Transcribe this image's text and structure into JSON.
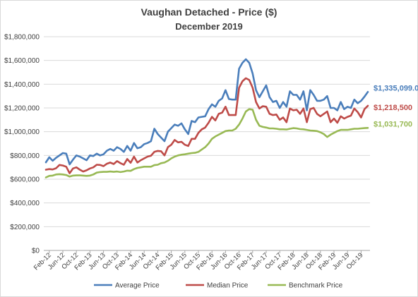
{
  "chart_data": {
    "type": "line",
    "title": "Vaughan Detached - Price ($)",
    "subtitle": "December 2019",
    "ylim": [
      0,
      1800000
    ],
    "y_ticks": [
      "$0",
      "$200,000",
      "$400,000",
      "$600,000",
      "$800,000",
      "$1,000,000",
      "$1,200,000",
      "$1,400,000",
      "$1,600,000",
      "$1,800,000"
    ],
    "x_tick_labels": [
      "Feb-12",
      "Jun-12",
      "Oct-12",
      "Feb-13",
      "Jun-13",
      "Oct-13",
      "Feb-14",
      "Jun-14",
      "Oct-14",
      "Feb-15",
      "Jun-15",
      "Oct-15",
      "Feb-16",
      "Jun-16",
      "Oct-16",
      "Feb-17",
      "Jun-17",
      "Oct-17",
      "Feb-18",
      "Jun-18",
      "Oct-18",
      "Feb-19",
      "Jun-19",
      "Oct-19"
    ],
    "x_start": "Jan-12",
    "x_end": "Dec-19",
    "grid": true,
    "legend_position": "bottom",
    "series": [
      {
        "name": "Average Price",
        "color": "#4a7ebb",
        "end_label": "$1,335,099.00",
        "values": [
          742000,
          785000,
          755000,
          780000,
          800000,
          820000,
          815000,
          725000,
          765000,
          800000,
          790000,
          775000,
          760000,
          800000,
          795000,
          815000,
          800000,
          810000,
          840000,
          855000,
          840000,
          870000,
          855000,
          830000,
          880000,
          840000,
          905000,
          860000,
          870000,
          895000,
          905000,
          920000,
          1025000,
          980000,
          950000,
          920000,
          1000000,
          1030000,
          1060000,
          1050000,
          1070000,
          1020000,
          980000,
          1090000,
          1080000,
          1120000,
          1125000,
          1130000,
          1190000,
          1230000,
          1210000,
          1260000,
          1280000,
          1350000,
          1275000,
          1270000,
          1270000,
          1530000,
          1580000,
          1610000,
          1580000,
          1490000,
          1350000,
          1290000,
          1340000,
          1390000,
          1290000,
          1250000,
          1260000,
          1200000,
          1250000,
          1210000,
          1340000,
          1310000,
          1310000,
          1270000,
          1340000,
          1180000,
          1350000,
          1310000,
          1260000,
          1260000,
          1270000,
          1300000,
          1200000,
          1200000,
          1180000,
          1250000,
          1190000,
          1210000,
          1200000,
          1270000,
          1240000,
          1260000,
          1295000,
          1335099
        ]
      },
      {
        "name": "Median Price",
        "color": "#be4b48",
        "end_label": "$1,218,500",
        "values": [
          680000,
          685000,
          682000,
          692000,
          720000,
          715000,
          705000,
          650000,
          690000,
          700000,
          680000,
          665000,
          675000,
          690000,
          700000,
          722000,
          720000,
          710000,
          730000,
          740000,
          728000,
          752000,
          735000,
          722000,
          770000,
          738000,
          790000,
          740000,
          760000,
          775000,
          790000,
          798000,
          830000,
          838000,
          835000,
          800000,
          870000,
          890000,
          930000,
          910000,
          915000,
          890000,
          880000,
          940000,
          940000,
          990000,
          1020000,
          1035000,
          1075000,
          1125000,
          1095000,
          1150000,
          1160000,
          1210000,
          1140000,
          1140000,
          1140000,
          1370000,
          1425000,
          1450000,
          1435000,
          1370000,
          1250000,
          1195000,
          1215000,
          1210000,
          1150000,
          1140000,
          1145000,
          1100000,
          1120000,
          1080000,
          1195000,
          1180000,
          1185000,
          1150000,
          1195000,
          1080000,
          1190000,
          1200000,
          1150000,
          1130000,
          1150000,
          1170000,
          1080000,
          1110000,
          1075000,
          1130000,
          1110000,
          1125000,
          1135000,
          1195000,
          1165000,
          1120000,
          1190000,
          1218500
        ]
      },
      {
        "name": "Benchmark Price",
        "color": "#98b954",
        "end_label": "$1,031,700",
        "values": [
          615000,
          628000,
          630000,
          640000,
          642000,
          640000,
          635000,
          622000,
          630000,
          632000,
          632000,
          630000,
          628000,
          630000,
          640000,
          655000,
          660000,
          662000,
          662000,
          665000,
          662000,
          665000,
          660000,
          665000,
          672000,
          670000,
          685000,
          695000,
          700000,
          705000,
          705000,
          705000,
          718000,
          722000,
          735000,
          740000,
          755000,
          775000,
          790000,
          800000,
          806000,
          810000,
          815000,
          820000,
          822000,
          830000,
          850000,
          870000,
          900000,
          940000,
          960000,
          975000,
          990000,
          1005000,
          1010000,
          1010000,
          1025000,
          1060000,
          1110000,
          1170000,
          1190000,
          1185000,
          1100000,
          1050000,
          1040000,
          1035000,
          1028000,
          1028000,
          1025000,
          1020000,
          1020000,
          1018000,
          1025000,
          1030000,
          1028000,
          1022000,
          1020000,
          1015000,
          1010000,
          1008000,
          1005000,
          995000,
          980000,
          955000,
          975000,
          990000,
          1005000,
          1015000,
          1015000,
          1015000,
          1020000,
          1025000,
          1025000,
          1028000,
          1030000,
          1031700
        ]
      }
    ]
  }
}
